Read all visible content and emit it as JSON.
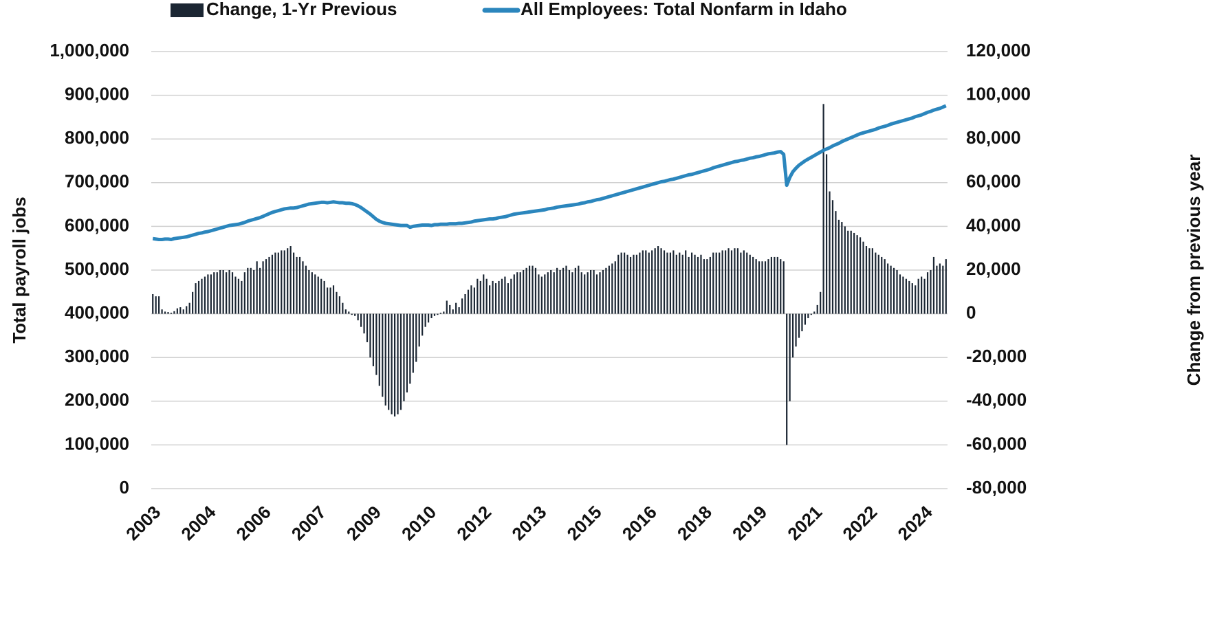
{
  "chart_data": {
    "type": "combo",
    "y_label": "Total payroll jobs",
    "y2_label": "Change from previous year",
    "legend": "top",
    "grid": true,
    "ylim": [
      0,
      1000000
    ],
    "yticks": [
      0,
      {
        "value": 100000,
        "label": "100,000"
      },
      {
        "value": 200000,
        "label": "200,000"
      },
      {
        "value": 300000,
        "label": "300,000"
      },
      {
        "value": 400000,
        "label": "400,000"
      },
      {
        "value": 500000,
        "label": "500,000"
      },
      {
        "value": 600000,
        "label": "600,000"
      },
      {
        "value": 700000,
        "label": "700,000"
      },
      {
        "value": 800000,
        "label": "800,000"
      },
      {
        "value": 900000,
        "label": "900,000"
      },
      {
        "value": 1000000,
        "label": "1,000,000"
      }
    ],
    "y2lim": [
      -80000,
      120000
    ],
    "y2ticks": [
      {
        "value": -80000,
        "label": "-80,000"
      },
      {
        "value": -60000,
        "label": "-60,000"
      },
      {
        "value": -40000,
        "label": "-40,000"
      },
      {
        "value": -20000,
        "label": "-20,000"
      },
      0,
      {
        "value": 20000,
        "label": "20,000"
      },
      {
        "value": 40000,
        "label": "40,000"
      },
      {
        "value": 60000,
        "label": "60,000"
      },
      {
        "value": 80000,
        "label": "80,000"
      },
      {
        "value": 100000,
        "label": "100,000"
      },
      {
        "value": 120000,
        "label": "120,000"
      }
    ],
    "categories": [
      "2003",
      null,
      null,
      null,
      null,
      null,
      null,
      null,
      null,
      null,
      null,
      null,
      null,
      null,
      null,
      null,
      null,
      null,
      "2004",
      null,
      null,
      null,
      null,
      null,
      null,
      null,
      null,
      null,
      null,
      null,
      null,
      null,
      null,
      null,
      null,
      null,
      "2006",
      null,
      null,
      null,
      null,
      null,
      null,
      null,
      null,
      null,
      null,
      null,
      null,
      null,
      null,
      null,
      null,
      null,
      "2007",
      null,
      null,
      null,
      null,
      null,
      null,
      null,
      null,
      null,
      null,
      null,
      null,
      null,
      null,
      null,
      null,
      null,
      "2009",
      null,
      null,
      null,
      null,
      null,
      null,
      null,
      null,
      null,
      null,
      null,
      null,
      null,
      null,
      null,
      null,
      null,
      "2010",
      null,
      null,
      null,
      null,
      null,
      null,
      null,
      null,
      null,
      null,
      null,
      null,
      null,
      null,
      null,
      null,
      null,
      "2012",
      null,
      null,
      null,
      null,
      null,
      null,
      null,
      null,
      null,
      null,
      null,
      null,
      null,
      null,
      null,
      null,
      null,
      "2013",
      null,
      null,
      null,
      null,
      null,
      null,
      null,
      null,
      null,
      null,
      null,
      null,
      null,
      null,
      null,
      null,
      null,
      "2015",
      null,
      null,
      null,
      null,
      null,
      null,
      null,
      null,
      null,
      null,
      null,
      null,
      null,
      null,
      null,
      null,
      null,
      "2016",
      null,
      null,
      null,
      null,
      null,
      null,
      null,
      null,
      null,
      null,
      null,
      null,
      null,
      null,
      null,
      null,
      null,
      "2018",
      null,
      null,
      null,
      null,
      null,
      null,
      null,
      null,
      null,
      null,
      null,
      null,
      null,
      null,
      null,
      null,
      null,
      "2019",
      null,
      null,
      null,
      null,
      null,
      null,
      null,
      null,
      null,
      null,
      null,
      null,
      null,
      null,
      null,
      null,
      null,
      "2021",
      null,
      null,
      null,
      null,
      null,
      null,
      null,
      null,
      null,
      null,
      null,
      null,
      null,
      null,
      null,
      null,
      null,
      "2022",
      null,
      null,
      null,
      null,
      null,
      null,
      null,
      null,
      null,
      null,
      null,
      null,
      null,
      null,
      null,
      null,
      null,
      "2024",
      null,
      null,
      null,
      null,
      null,
      null,
      null
    ],
    "series": [
      {
        "name": "Change, 1-Yr Previous",
        "type": "bar",
        "axis": "y2",
        "color": "#1b2633",
        "values": [
          9000,
          8000,
          8000,
          2000,
          1000,
          800,
          500,
          1200,
          2500,
          3000,
          2000,
          3500,
          5000,
          10000,
          14000,
          15000,
          16000,
          17000,
          18000,
          18000,
          19000,
          19000,
          20000,
          20000,
          19000,
          20000,
          19000,
          17000,
          16000,
          15000,
          19000,
          21000,
          21000,
          20000,
          24000,
          21000,
          24000,
          25000,
          26000,
          27000,
          28000,
          28000,
          29000,
          29000,
          30000,
          31000,
          28000,
          26000,
          26000,
          24000,
          22000,
          20000,
          19000,
          18000,
          17000,
          16000,
          15000,
          12000,
          12000,
          13000,
          10000,
          8000,
          5000,
          2000,
          1000,
          -500,
          -1000,
          -3000,
          -6000,
          -9000,
          -13000,
          -20000,
          -24000,
          -28000,
          -33000,
          -38000,
          -42000,
          -44000,
          -46000,
          -47000,
          -46000,
          -44000,
          -40000,
          -36000,
          -32000,
          -27000,
          -22000,
          -15000,
          -10000,
          -6000,
          -4000,
          -2000,
          -1000,
          -500,
          500,
          1000,
          6000,
          4000,
          2000,
          5000,
          3000,
          7000,
          9000,
          11000,
          13000,
          12000,
          16000,
          15000,
          18000,
          16000,
          13000,
          15000,
          14000,
          15000,
          16000,
          17000,
          14000,
          16000,
          18000,
          19000,
          19000,
          20000,
          21000,
          22000,
          22000,
          21000,
          18000,
          17000,
          18000,
          19000,
          20000,
          19000,
          21000,
          20000,
          21000,
          22000,
          20000,
          19000,
          21000,
          22000,
          19000,
          18000,
          19000,
          20000,
          20000,
          18000,
          19000,
          20000,
          21000,
          22000,
          23000,
          24000,
          27000,
          28000,
          28000,
          27000,
          26000,
          27000,
          27000,
          28000,
          29000,
          29000,
          28000,
          29000,
          30000,
          31000,
          30000,
          29000,
          28000,
          28000,
          29000,
          27000,
          28000,
          27000,
          29000,
          26000,
          28000,
          27000,
          26000,
          27000,
          25000,
          25000,
          26000,
          28000,
          28000,
          28000,
          29000,
          29000,
          30000,
          29000,
          30000,
          30000,
          28000,
          29000,
          28000,
          27000,
          26000,
          25000,
          24000,
          24000,
          24000,
          25000,
          26000,
          26000,
          26000,
          25000,
          24000,
          -60000,
          -40000,
          -20000,
          -15000,
          -11000,
          -8000,
          -5000,
          -2000,
          -500,
          1000,
          4000,
          10000,
          96000,
          73000,
          56000,
          52000,
          47000,
          43000,
          42000,
          40000,
          38000,
          38000,
          37000,
          36000,
          35000,
          33000,
          31000,
          30000,
          30000,
          28000,
          27000,
          26000,
          25000,
          23000,
          22000,
          21000,
          20000,
          18000,
          17000,
          16000,
          15000,
          14000,
          13000,
          16000,
          17000,
          16000,
          19000,
          20000,
          26000,
          22000,
          23000,
          22000,
          25000
        ]
      },
      {
        "name": "All Employees: Total Nonfarm in Idaho",
        "type": "line",
        "color": "#2b86bd",
        "values": [
          572000,
          571000,
          570000,
          570000,
          571000,
          571000,
          570000,
          572000,
          573000,
          574000,
          575000,
          576000,
          578000,
          580000,
          582000,
          584000,
          585000,
          587000,
          588000,
          590000,
          592000,
          594000,
          596000,
          598000,
          600000,
          602000,
          603000,
          604000,
          605000,
          607000,
          609000,
          612000,
          614000,
          616000,
          618000,
          620000,
          623000,
          626000,
          629000,
          632000,
          634000,
          636000,
          638000,
          640000,
          641000,
          642000,
          642000,
          643000,
          645000,
          647000,
          649000,
          651000,
          652000,
          653000,
          654000,
          655000,
          655000,
          654000,
          655000,
          656000,
          655000,
          654000,
          654000,
          653000,
          653000,
          652000,
          650000,
          647000,
          643000,
          638000,
          633000,
          628000,
          622000,
          616000,
          612000,
          609000,
          607000,
          606000,
          605000,
          604000,
          603000,
          602000,
          602000,
          602000,
          598000,
          600000,
          601000,
          602000,
          603000,
          603000,
          603000,
          602000,
          604000,
          604000,
          605000,
          605000,
          605000,
          606000,
          606000,
          606000,
          607000,
          607000,
          608000,
          609000,
          610000,
          612000,
          613000,
          614000,
          615000,
          616000,
          617000,
          617000,
          618000,
          620000,
          621000,
          622000,
          624000,
          626000,
          628000,
          629000,
          630000,
          631000,
          632000,
          633000,
          634000,
          635000,
          636000,
          637000,
          638000,
          640000,
          641000,
          642000,
          644000,
          645000,
          646000,
          647000,
          648000,
          649000,
          650000,
          651000,
          653000,
          654000,
          656000,
          657000,
          659000,
          661000,
          662000,
          664000,
          666000,
          668000,
          670000,
          672000,
          674000,
          676000,
          678000,
          680000,
          682000,
          684000,
          686000,
          688000,
          690000,
          692000,
          694000,
          696000,
          698000,
          700000,
          702000,
          703000,
          705000,
          707000,
          708000,
          710000,
          712000,
          714000,
          716000,
          718000,
          719000,
          721000,
          723000,
          725000,
          727000,
          729000,
          731000,
          734000,
          736000,
          738000,
          740000,
          742000,
          744000,
          746000,
          748000,
          749000,
          751000,
          752000,
          754000,
          756000,
          757000,
          759000,
          760000,
          762000,
          764000,
          766000,
          767000,
          768000,
          770000,
          771000,
          765000,
          694000,
          712000,
          725000,
          733000,
          740000,
          745000,
          750000,
          754000,
          758000,
          762000,
          766000,
          770000,
          774000,
          777000,
          780000,
          784000,
          787000,
          790000,
          794000,
          797000,
          800000,
          803000,
          806000,
          809000,
          812000,
          814000,
          816000,
          818000,
          820000,
          822000,
          825000,
          827000,
          829000,
          831000,
          834000,
          836000,
          838000,
          840000,
          842000,
          844000,
          846000,
          848000,
          851000,
          853000,
          855000,
          858000,
          861000,
          863000,
          866000,
          868000,
          870000,
          873000,
          876000
        ]
      }
    ]
  }
}
